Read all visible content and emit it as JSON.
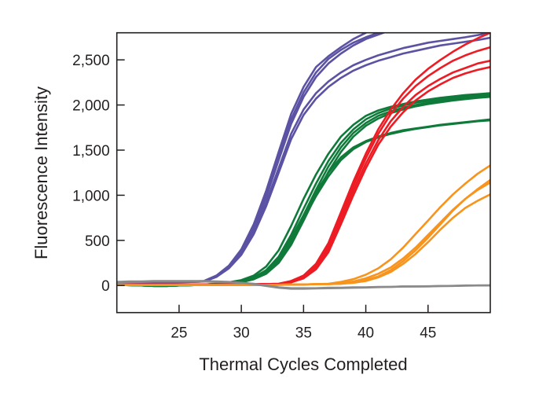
{
  "chart_data": {
    "type": "line",
    "title": "",
    "xlabel": "Thermal Cycles Completed",
    "ylabel": "Fluorescence Intensity",
    "xlim": [
      20,
      50
    ],
    "ylim": [
      -300,
      2800
    ],
    "grid": false,
    "legend": "none",
    "x_ticks": [
      25,
      30,
      35,
      40,
      45
    ],
    "x_tick_labels": [
      "25",
      "30",
      "35",
      "40",
      "45"
    ],
    "y_ticks": [
      0,
      500,
      1000,
      1500,
      2000,
      2500
    ],
    "y_tick_labels": [
      "0",
      "500",
      "1,000",
      "1,500",
      "2,000",
      "2,500"
    ],
    "x": [
      20,
      21,
      22,
      23,
      24,
      25,
      26,
      27,
      28,
      29,
      30,
      31,
      32,
      33,
      34,
      35,
      36,
      37,
      38,
      39,
      40,
      41,
      42,
      43,
      44,
      45,
      46,
      47,
      48,
      49,
      50
    ],
    "series": [
      {
        "color": "#0f7a3a",
        "values": [
          10,
          5,
          0,
          -5,
          -5,
          0,
          5,
          10,
          20,
          35,
          60,
          110,
          210,
          390,
          660,
          960,
          1230,
          1460,
          1650,
          1780,
          1880,
          1940,
          1980,
          2010,
          2040,
          2060,
          2080,
          2095,
          2110,
          2120,
          2130
        ]
      },
      {
        "color": "#0f7a3a",
        "values": [
          10,
          5,
          0,
          -5,
          -5,
          0,
          5,
          10,
          18,
          30,
          50,
          90,
          170,
          320,
          560,
          850,
          1130,
          1380,
          1580,
          1730,
          1840,
          1910,
          1960,
          1995,
          2025,
          2045,
          2065,
          2080,
          2095,
          2110,
          2120
        ]
      },
      {
        "color": "#0f7a3a",
        "values": [
          8,
          4,
          0,
          -5,
          -5,
          0,
          4,
          8,
          16,
          28,
          45,
          80,
          150,
          280,
          500,
          780,
          1060,
          1320,
          1530,
          1690,
          1800,
          1880,
          1930,
          1970,
          2000,
          2025,
          2045,
          2060,
          2075,
          2090,
          2100
        ]
      },
      {
        "color": "#0f7a3a",
        "values": [
          8,
          4,
          0,
          -4,
          -4,
          0,
          4,
          8,
          15,
          25,
          40,
          70,
          130,
          250,
          450,
          720,
          1000,
          1260,
          1480,
          1650,
          1770,
          1850,
          1910,
          1950,
          1985,
          2010,
          2030,
          2050,
          2065,
          2080,
          2090
        ]
      },
      {
        "color": "#0f7a3a",
        "values": [
          10,
          5,
          0,
          -5,
          -5,
          0,
          5,
          10,
          18,
          28,
          40,
          80,
          160,
          300,
          520,
          780,
          1030,
          1250,
          1420,
          1530,
          1600,
          1650,
          1690,
          1720,
          1740,
          1760,
          1780,
          1795,
          1810,
          1825,
          1840
        ]
      },
      {
        "color": "#0f7a3a",
        "values": [
          8,
          4,
          0,
          -4,
          -4,
          0,
          4,
          8,
          15,
          25,
          35,
          70,
          140,
          270,
          480,
          740,
          990,
          1210,
          1390,
          1510,
          1590,
          1640,
          1680,
          1710,
          1735,
          1755,
          1775,
          1790,
          1805,
          1820,
          1830
        ]
      },
      {
        "color": "#5b52a3",
        "values": [
          30,
          30,
          35,
          35,
          40,
          40,
          45,
          50,
          110,
          220,
          400,
          680,
          1050,
          1480,
          1900,
          2200,
          2420,
          2540,
          2640,
          2730,
          2800,
          2860,
          2900,
          2930,
          2960,
          2980,
          3000,
          3020,
          3040,
          3050,
          3060
        ]
      },
      {
        "color": "#5b52a3",
        "values": [
          30,
          32,
          35,
          38,
          40,
          42,
          45,
          48,
          100,
          210,
          380,
          650,
          1010,
          1430,
          1840,
          2140,
          2360,
          2510,
          2610,
          2690,
          2750,
          2800,
          2850,
          2890,
          2920,
          2950,
          2970,
          2990,
          3010,
          3030,
          3040
        ]
      },
      {
        "color": "#5b52a3",
        "values": [
          28,
          30,
          33,
          36,
          38,
          40,
          43,
          46,
          95,
          200,
          370,
          630,
          980,
          1390,
          1790,
          2090,
          2310,
          2460,
          2570,
          2660,
          2730,
          2780,
          2830,
          2870,
          2900,
          2930,
          2950,
          2970,
          2990,
          3010,
          3020
        ]
      },
      {
        "color": "#5b52a3",
        "values": [
          25,
          28,
          30,
          32,
          35,
          38,
          40,
          45,
          100,
          200,
          360,
          600,
          920,
          1300,
          1680,
          1950,
          2130,
          2260,
          2360,
          2440,
          2500,
          2550,
          2590,
          2630,
          2660,
          2690,
          2710,
          2730,
          2750,
          2775,
          2800
        ]
      },
      {
        "color": "#5b52a3",
        "values": [
          25,
          27,
          30,
          32,
          34,
          36,
          40,
          44,
          95,
          190,
          340,
          570,
          880,
          1250,
          1620,
          1890,
          2070,
          2200,
          2300,
          2380,
          2440,
          2490,
          2530,
          2570,
          2600,
          2630,
          2660,
          2680,
          2700,
          2720,
          2745
        ]
      },
      {
        "color": "#ed1c24",
        "values": [
          10,
          10,
          10,
          10,
          10,
          10,
          10,
          10,
          10,
          10,
          12,
          14,
          16,
          20,
          50,
          110,
          240,
          470,
          810,
          1150,
          1460,
          1730,
          1950,
          2130,
          2280,
          2400,
          2500,
          2590,
          2670,
          2740,
          2800
        ]
      },
      {
        "color": "#ed1c24",
        "values": [
          10,
          10,
          10,
          10,
          10,
          10,
          10,
          10,
          10,
          10,
          12,
          14,
          16,
          20,
          45,
          100,
          220,
          430,
          760,
          1100,
          1410,
          1680,
          1900,
          2070,
          2210,
          2320,
          2410,
          2490,
          2550,
          2600,
          2640
        ]
      },
      {
        "color": "#ed1c24",
        "values": [
          10,
          10,
          10,
          10,
          10,
          10,
          10,
          10,
          10,
          10,
          12,
          14,
          16,
          15,
          40,
          90,
          200,
          400,
          720,
          1050,
          1350,
          1610,
          1820,
          1980,
          2110,
          2210,
          2290,
          2360,
          2410,
          2460,
          2490
        ]
      },
      {
        "color": "#ed1c24",
        "values": [
          10,
          10,
          10,
          10,
          10,
          10,
          10,
          10,
          10,
          10,
          12,
          14,
          16,
          15,
          35,
          80,
          180,
          370,
          680,
          1000,
          1300,
          1560,
          1760,
          1920,
          2050,
          2150,
          2230,
          2300,
          2350,
          2390,
          2420
        ]
      },
      {
        "color": "#f7941d",
        "values": [
          5,
          5,
          5,
          5,
          5,
          5,
          5,
          5,
          5,
          5,
          5,
          5,
          5,
          8,
          10,
          12,
          15,
          20,
          40,
          70,
          120,
          190,
          290,
          420,
          570,
          720,
          870,
          1010,
          1130,
          1240,
          1330
        ]
      },
      {
        "color": "#f7941d",
        "values": [
          5,
          5,
          5,
          5,
          5,
          5,
          5,
          5,
          5,
          5,
          5,
          5,
          5,
          8,
          10,
          12,
          15,
          18,
          25,
          45,
          80,
          130,
          200,
          300,
          420,
          560,
          700,
          840,
          960,
          1070,
          1170
        ]
      },
      {
        "color": "#f7941d",
        "values": [
          5,
          5,
          5,
          5,
          5,
          5,
          5,
          5,
          5,
          5,
          5,
          5,
          5,
          8,
          10,
          12,
          15,
          15,
          20,
          35,
          60,
          100,
          170,
          270,
          390,
          530,
          680,
          830,
          960,
          1060,
          1140
        ]
      },
      {
        "color": "#f7941d",
        "values": [
          5,
          5,
          5,
          5,
          5,
          5,
          5,
          5,
          5,
          5,
          5,
          5,
          5,
          8,
          10,
          12,
          15,
          15,
          20,
          30,
          50,
          90,
          150,
          240,
          350,
          480,
          620,
          750,
          860,
          940,
          1010
        ]
      },
      {
        "color": "#8a8a8a",
        "values": [
          40,
          45,
          45,
          50,
          50,
          50,
          50,
          50,
          45,
          40,
          30,
          20,
          0,
          -20,
          -30,
          -30,
          -30,
          -25,
          -25,
          -20,
          -20,
          -15,
          -15,
          -10,
          -10,
          -10,
          -5,
          -5,
          0,
          0,
          0
        ]
      },
      {
        "color": "#8a8a8a",
        "values": [
          30,
          35,
          40,
          45,
          45,
          45,
          45,
          45,
          40,
          35,
          28,
          15,
          -5,
          -25,
          -35,
          -35,
          -32,
          -30,
          -28,
          -25,
          -22,
          -18,
          -15,
          -12,
          -10,
          -8,
          -6,
          -4,
          -2,
          0,
          2
        ]
      }
    ]
  }
}
